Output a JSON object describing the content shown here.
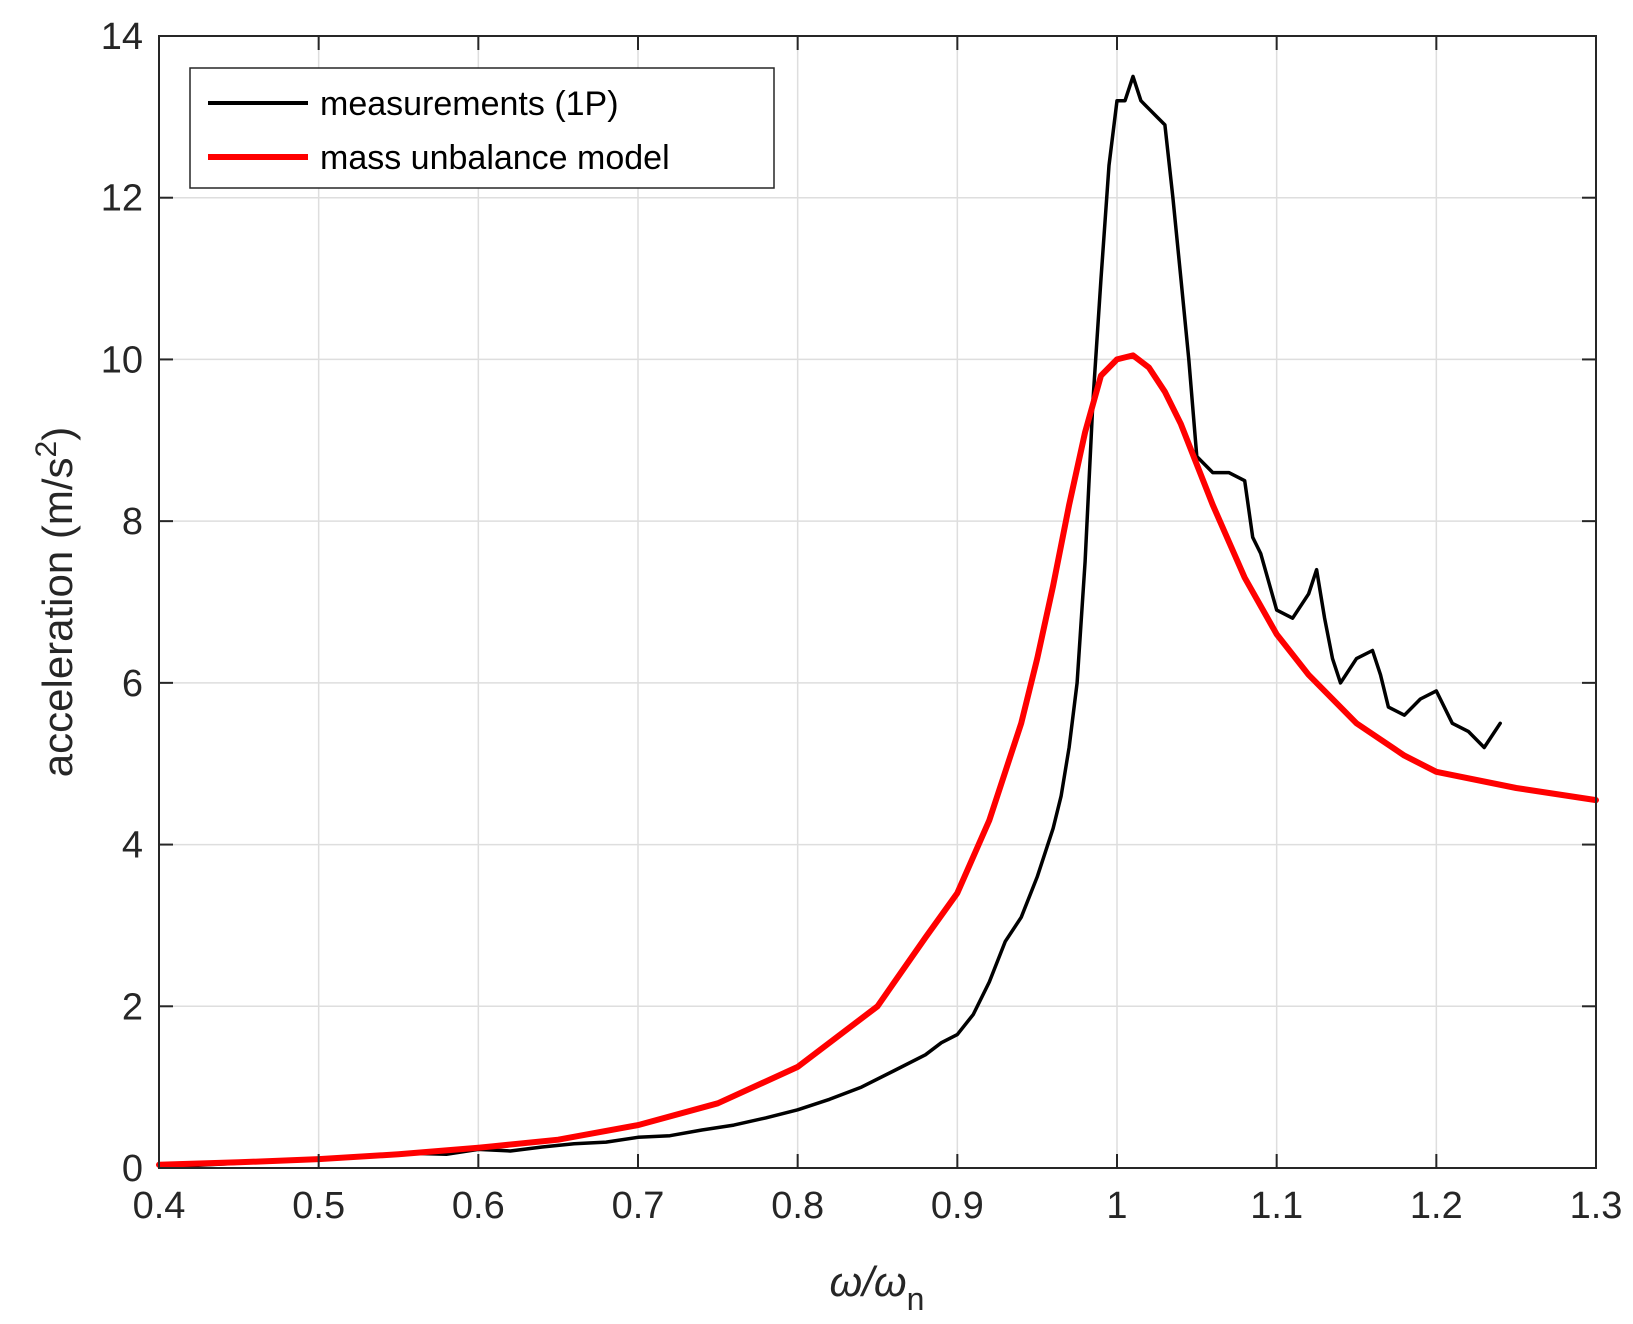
{
  "chart_data": {
    "type": "line",
    "xlabel": {
      "main": "ω/ω",
      "sub": "n"
    },
    "ylabel": {
      "main": "acceleration (m/s",
      "sup": "2",
      "end": ")"
    },
    "xlim": [
      0.4,
      1.3
    ],
    "ylim": [
      0,
      14
    ],
    "xticks": [
      "0.4",
      "0.5",
      "0.6",
      "0.7",
      "0.8",
      "0.9",
      "1",
      "1.1",
      "1.2",
      "1.3"
    ],
    "yticks": [
      "0",
      "2",
      "4",
      "6",
      "8",
      "10",
      "12",
      "14"
    ],
    "grid": true,
    "legend_position": "top-left",
    "series": [
      {
        "name": "measurements (1P)",
        "color": "#000000",
        "x": [
          0.4,
          0.42,
          0.44,
          0.46,
          0.48,
          0.5,
          0.52,
          0.54,
          0.56,
          0.58,
          0.6,
          0.62,
          0.64,
          0.66,
          0.68,
          0.7,
          0.72,
          0.74,
          0.76,
          0.78,
          0.8,
          0.82,
          0.84,
          0.86,
          0.88,
          0.89,
          0.9,
          0.91,
          0.92,
          0.93,
          0.94,
          0.95,
          0.96,
          0.965,
          0.97,
          0.975,
          0.98,
          0.985,
          0.99,
          0.995,
          1.0,
          1.005,
          1.01,
          1.015,
          1.02,
          1.025,
          1.03,
          1.035,
          1.04,
          1.045,
          1.05,
          1.06,
          1.07,
          1.08,
          1.085,
          1.09,
          1.1,
          1.11,
          1.12,
          1.125,
          1.13,
          1.135,
          1.14,
          1.15,
          1.16,
          1.165,
          1.17,
          1.18,
          1.19,
          1.2,
          1.21,
          1.22,
          1.23,
          1.24
        ],
        "y": [
          0.03,
          0.03,
          0.05,
          0.07,
          0.09,
          0.11,
          0.13,
          0.15,
          0.18,
          0.17,
          0.23,
          0.21,
          0.26,
          0.3,
          0.32,
          0.38,
          0.4,
          0.47,
          0.53,
          0.62,
          0.72,
          0.85,
          1.0,
          1.2,
          1.4,
          1.55,
          1.65,
          1.9,
          2.3,
          2.8,
          3.1,
          3.6,
          4.2,
          4.6,
          5.2,
          6.0,
          7.5,
          9.5,
          11.0,
          12.4,
          13.2,
          13.2,
          13.5,
          13.2,
          13.1,
          13.0,
          12.9,
          12.0,
          11.0,
          10.0,
          8.8,
          8.6,
          8.6,
          8.5,
          7.8,
          7.6,
          6.9,
          6.8,
          7.1,
          7.4,
          6.8,
          6.3,
          6.0,
          6.3,
          6.4,
          6.1,
          5.7,
          5.6,
          5.8,
          5.9,
          5.5,
          5.4,
          5.2,
          5.5
        ]
      },
      {
        "name": "mass unbalance model",
        "color": "#ff0000",
        "x": [
          0.4,
          0.45,
          0.5,
          0.55,
          0.6,
          0.65,
          0.7,
          0.75,
          0.8,
          0.85,
          0.88,
          0.9,
          0.92,
          0.94,
          0.95,
          0.96,
          0.97,
          0.98,
          0.99,
          1.0,
          1.01,
          1.02,
          1.03,
          1.04,
          1.05,
          1.06,
          1.08,
          1.1,
          1.12,
          1.15,
          1.18,
          1.2,
          1.25,
          1.3
        ],
        "y": [
          0.04,
          0.07,
          0.11,
          0.17,
          0.25,
          0.35,
          0.53,
          0.8,
          1.25,
          2.0,
          2.85,
          3.4,
          4.3,
          5.5,
          6.3,
          7.2,
          8.2,
          9.1,
          9.8,
          10.0,
          10.05,
          9.9,
          9.6,
          9.2,
          8.7,
          8.2,
          7.3,
          6.6,
          6.1,
          5.5,
          5.1,
          4.9,
          4.7,
          4.55
        ]
      }
    ]
  }
}
